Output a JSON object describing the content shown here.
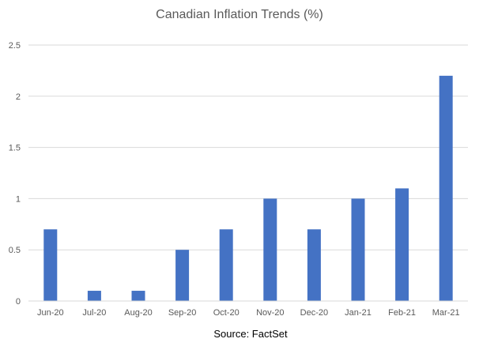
{
  "chart_data": {
    "type": "bar",
    "title": "Canadian Inflation Trends (%)",
    "source": "Source: FactSet",
    "categories": [
      "Jun-20",
      "Jul-20",
      "Aug-20",
      "Sep-20",
      "Oct-20",
      "Nov-20",
      "Dec-20",
      "Jan-21",
      "Feb-21",
      "Mar-21"
    ],
    "values": [
      0.7,
      0.1,
      0.1,
      0.5,
      0.7,
      1.0,
      0.7,
      1.0,
      1.1,
      2.2
    ],
    "yticks": [
      "0",
      "0.5",
      "1",
      "1.5",
      "2",
      "2.5"
    ],
    "ylim": [
      0,
      2.5
    ],
    "grid": true,
    "legend": "none",
    "bar_color": "#4472C4",
    "grid_color": "#d9d9d9",
    "text_color": "#595959"
  }
}
